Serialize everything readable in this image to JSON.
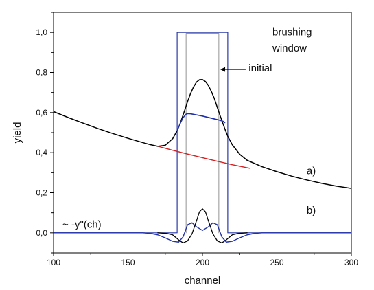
{
  "chart_data": {
    "type": "line",
    "title": "",
    "xlabel": "channel",
    "ylabel": "yield",
    "xlim": [
      100,
      300
    ],
    "ylim": [
      -0.1,
      1.1
    ],
    "x_ticks": [
      100,
      150,
      200,
      250,
      300
    ],
    "x_tick_labels": [
      "100",
      "150",
      "200",
      "250",
      "300"
    ],
    "y_ticks": [
      0.0,
      0.2,
      0.4,
      0.6,
      0.8,
      1.0
    ],
    "y_tick_labels": [
      "0,0",
      "0,2",
      "0,4",
      "0,6",
      "0,8",
      "1,0"
    ],
    "grid": false,
    "colors": {
      "spectrum": "#000000",
      "background": "#d42020",
      "brushed": "#1f2fa8",
      "window": "#2a3aa8",
      "initial_window": "#888888",
      "second_derivative": "#1f2fa8",
      "peak_derivative": "#000000"
    },
    "series": [
      {
        "key": "spectrum",
        "x": [
          100,
          110,
          120,
          130,
          140,
          150,
          160,
          165,
          170,
          175,
          180,
          183,
          185,
          188,
          190,
          192,
          194,
          196,
          198,
          200,
          202,
          204,
          206,
          208,
          210,
          212,
          215,
          217,
          220,
          225,
          230,
          240,
          250,
          260,
          270,
          280,
          290,
          300
        ],
        "y": [
          0.605,
          0.575,
          0.547,
          0.52,
          0.495,
          0.472,
          0.45,
          0.44,
          0.432,
          0.437,
          0.47,
          0.51,
          0.545,
          0.61,
          0.655,
          0.695,
          0.728,
          0.752,
          0.764,
          0.765,
          0.755,
          0.735,
          0.705,
          0.67,
          0.625,
          0.582,
          0.52,
          0.482,
          0.44,
          0.392,
          0.362,
          0.33,
          0.305,
          0.283,
          0.264,
          0.247,
          0.233,
          0.222
        ]
      },
      {
        "key": "background",
        "x": [
          170,
          180,
          190,
          200,
          210,
          220,
          232
        ],
        "y": [
          0.432,
          0.412,
          0.393,
          0.375,
          0.357,
          0.34,
          0.322
        ]
      },
      {
        "key": "brushed",
        "x": [
          183,
          185,
          187,
          189,
          190,
          192,
          195,
          200,
          205,
          210,
          212,
          214,
          215
        ],
        "y": [
          0.51,
          0.545,
          0.575,
          0.592,
          0.595,
          0.594,
          0.59,
          0.583,
          0.574,
          0.565,
          0.561,
          0.556,
          0.55
        ]
      },
      {
        "key": "window",
        "x": [
          100,
          183,
          183,
          217,
          217,
          300
        ],
        "y": [
          0.0,
          0.0,
          1.0,
          1.0,
          0.0,
          0.0
        ]
      },
      {
        "key": "initial_window",
        "x": [
          189,
          189,
          211,
          211
        ],
        "y": [
          0.0,
          0.995,
          0.995,
          0.0
        ]
      },
      {
        "key": "second_derivative",
        "x": [
          100,
          160,
          165,
          170,
          175,
          180,
          184,
          187,
          190,
          193,
          196,
          200,
          204,
          207,
          210,
          213,
          216,
          220,
          225,
          230,
          235,
          240,
          300
        ],
        "y": [
          0.0,
          0.0,
          -0.003,
          -0.01,
          -0.025,
          -0.042,
          -0.046,
          -0.02,
          0.04,
          0.05,
          0.03,
          0.012,
          0.03,
          0.05,
          0.04,
          -0.02,
          -0.046,
          -0.042,
          -0.025,
          -0.01,
          -0.003,
          0.0,
          0.0
        ]
      },
      {
        "key": "peak_derivative",
        "x": [
          170,
          176,
          180,
          184,
          187,
          190,
          193,
          196,
          198,
          200,
          202,
          204,
          207,
          210,
          213,
          216,
          220,
          224,
          230
        ],
        "y": [
          0.0,
          -0.003,
          -0.01,
          -0.035,
          -0.05,
          -0.04,
          -0.005,
          0.06,
          0.105,
          0.12,
          0.105,
          0.06,
          -0.005,
          -0.04,
          -0.05,
          -0.035,
          -0.01,
          -0.003,
          0.0
        ]
      }
    ],
    "annotations": [
      {
        "key": "brushing",
        "text": "brushing",
        "x": 247,
        "y": 0.985,
        "anchor": "start"
      },
      {
        "key": "window",
        "text": "window",
        "x": 247,
        "y": 0.905,
        "anchor": "start"
      },
      {
        "key": "initial",
        "text": "initial",
        "x": 231,
        "y": 0.805,
        "anchor": "start"
      },
      {
        "key": "a",
        "text": "a)",
        "x": 270,
        "y": 0.292,
        "anchor": "start"
      },
      {
        "key": "b",
        "text": "b)",
        "x": 270,
        "y": 0.095,
        "anchor": "start"
      },
      {
        "key": "deriv",
        "text": "~  -y\"(ch)",
        "x": 106,
        "y": 0.025,
        "anchor": "start"
      }
    ],
    "arrow": {
      "from": [
        229,
        0.815
      ],
      "to": [
        212,
        0.815
      ]
    }
  }
}
